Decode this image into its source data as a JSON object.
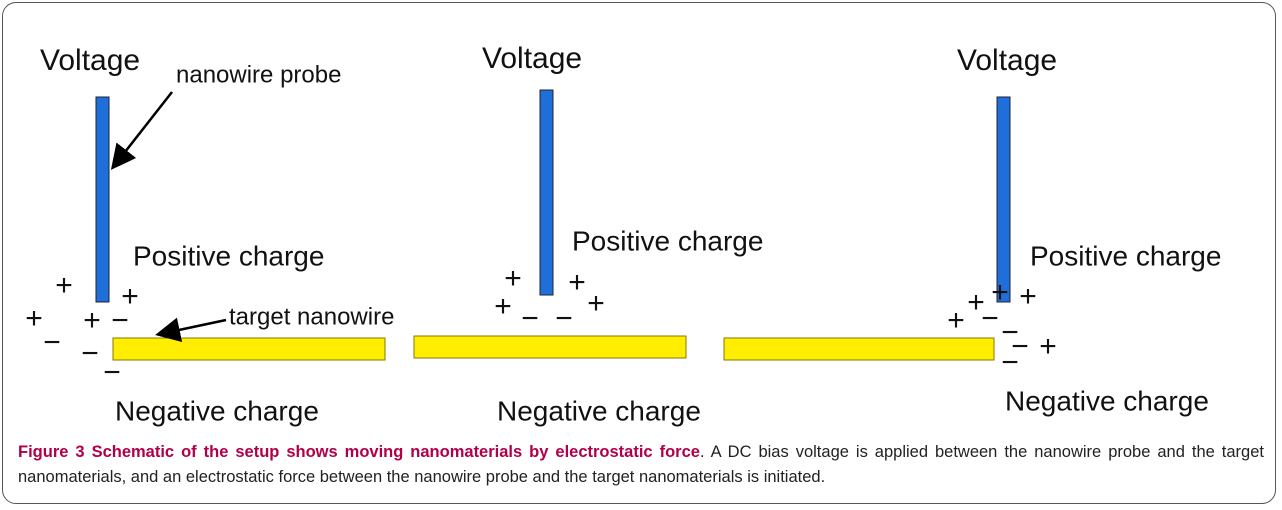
{
  "figure": {
    "panels": [
      {
        "voltage": "Voltage",
        "probe_label": "nanowire probe",
        "positive": "Positive charge",
        "target_label": "target nanowire",
        "negative": "Negative charge",
        "charges": [
          "+",
          "+",
          "+",
          "+",
          "−",
          "−",
          "−",
          "−"
        ]
      },
      {
        "voltage": "Voltage",
        "positive": "Positive charge",
        "negative": "Negative charge",
        "charges": [
          "+",
          "+",
          "+",
          "−",
          "−",
          "+"
        ]
      },
      {
        "voltage": "Voltage",
        "positive": "Positive charge",
        "negative": "Negative charge",
        "charges": [
          "+",
          "+",
          "+",
          "+",
          "−",
          "−",
          "−",
          "+",
          "−"
        ]
      }
    ]
  },
  "caption": {
    "label": "Figure 3",
    "title": "Schematic of the setup shows moving nanomaterials by electrostatic force",
    "text": ". A DC bias voltage is applied between the nanowire probe and the target nanomaterials, and an electrostatic force between the nanowire probe and the target nanomaterials is initiated."
  }
}
